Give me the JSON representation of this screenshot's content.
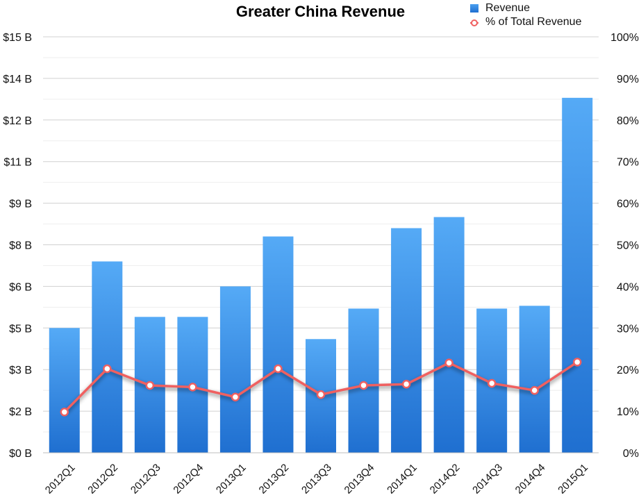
{
  "chart_data": {
    "type": "bar",
    "title": "Greater China Revenue",
    "categories": [
      "2012Q1",
      "2012Q2",
      "2012Q3",
      "2012Q4",
      "2013Q1",
      "2013Q2",
      "2013Q3",
      "2013Q4",
      "2014Q1",
      "2014Q2",
      "2014Q3",
      "2014Q4",
      "2015Q1"
    ],
    "series": [
      {
        "name": "Revenue",
        "axis": "left",
        "type": "bar",
        "values": [
          4.5,
          6.9,
          4.9,
          4.9,
          6.0,
          7.8,
          4.1,
          5.2,
          8.1,
          8.5,
          5.2,
          5.3,
          12.8
        ]
      },
      {
        "name": "% of Total Revenue",
        "axis": "right",
        "type": "line",
        "values": [
          9.8,
          20.2,
          16.2,
          15.8,
          13.4,
          20.2,
          14.0,
          16.2,
          16.5,
          21.6,
          16.7,
          15.0,
          21.8
        ]
      }
    ],
    "left_axis": {
      "min": 0,
      "max": 15,
      "ticks": [
        "$0 B",
        "$2 B",
        "$3 B",
        "$5 B",
        "$6 B",
        "$8 B",
        "$9 B",
        "$11 B",
        "$12 B",
        "$14 B",
        "$15 B"
      ]
    },
    "right_axis": {
      "min": 0,
      "max": 100,
      "ticks": [
        "0%",
        "10%",
        "20%",
        "30%",
        "40%",
        "50%",
        "60%",
        "70%",
        "80%",
        "90%",
        "100%"
      ]
    },
    "legend_position": "top-right",
    "grid": true,
    "colors": {
      "bar": "#2a7fe0",
      "bar_top": "#55aaf6",
      "line": "#f06060",
      "grid": "#d0d0d0"
    }
  }
}
